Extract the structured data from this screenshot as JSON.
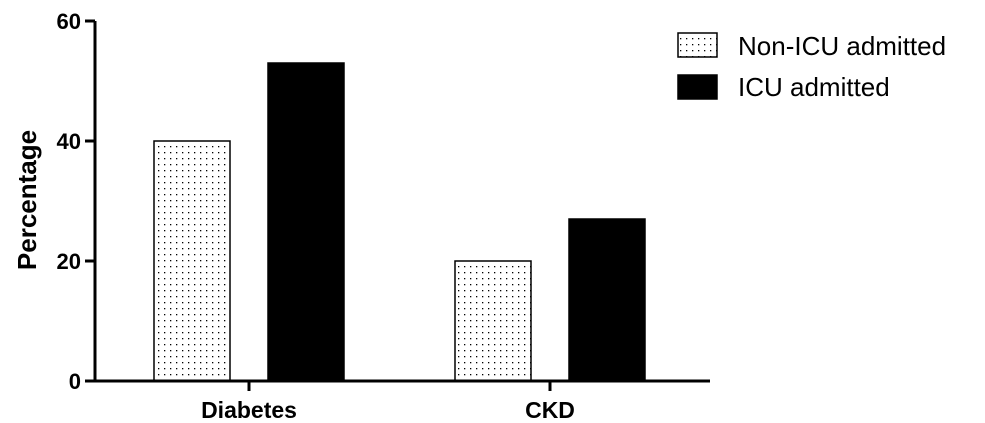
{
  "chart_data": {
    "type": "bar",
    "categories": [
      "Diabetes",
      "CKD"
    ],
    "series": [
      {
        "name": "Non-ICU admitted",
        "values": [
          40,
          20
        ],
        "fill": "dotted",
        "color": "#000000"
      },
      {
        "name": "ICU admitted",
        "values": [
          53,
          27
        ],
        "fill": "solid",
        "color": "#000000"
      }
    ],
    "ylabel": "Percentage",
    "xlabel": "",
    "ylim": [
      0,
      60
    ],
    "yticks": [
      0,
      20,
      40,
      60
    ],
    "grid": false,
    "legend": "top-right"
  }
}
